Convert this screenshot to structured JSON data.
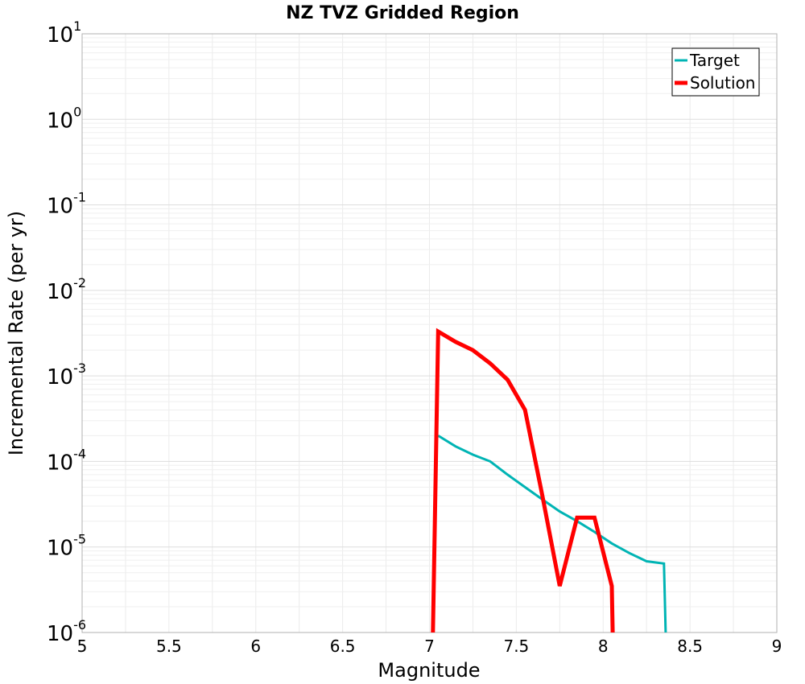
{
  "chart_data": {
    "type": "line",
    "title": "NZ TVZ Gridded Region",
    "xlabel": "Magnitude",
    "ylabel": "Incremental Rate (per yr)",
    "xlim": [
      5,
      9
    ],
    "ylim": [
      1e-06,
      10
    ],
    "yscale": "log",
    "grid": true,
    "legend_position": "top-right",
    "x_ticks": [
      5,
      5.5,
      6,
      6.5,
      7,
      7.5,
      8,
      8.5,
      9
    ],
    "x_tick_labels": [
      "5",
      "5.5",
      "6",
      "6.5",
      "7",
      "7.5",
      "8",
      "8.5",
      "9"
    ],
    "y_ticks": [
      {
        "value": 1e-06,
        "base": "10",
        "exp": "-6"
      },
      {
        "value": 1e-05,
        "base": "10",
        "exp": "-5"
      },
      {
        "value": 0.0001,
        "base": "10",
        "exp": "-4"
      },
      {
        "value": 0.001,
        "base": "10",
        "exp": "-3"
      },
      {
        "value": 0.01,
        "base": "10",
        "exp": "-2"
      },
      {
        "value": 0.1,
        "base": "10",
        "exp": "-1"
      },
      {
        "value": 1,
        "base": "10",
        "exp": "0"
      },
      {
        "value": 10,
        "base": "10",
        "exp": "1"
      }
    ],
    "series": [
      {
        "name": "Target",
        "color": "#00b4b4",
        "points": [
          [
            7.05,
            0.0002
          ],
          [
            7.15,
            0.00015
          ],
          [
            7.25,
            0.00012
          ],
          [
            7.35,
            0.0001
          ],
          [
            7.45,
            7e-05
          ],
          [
            7.55,
            5e-05
          ],
          [
            7.65,
            3.6e-05
          ],
          [
            7.75,
            2.6e-05
          ],
          [
            7.85,
            2e-05
          ],
          [
            7.95,
            1.5e-05
          ],
          [
            8.05,
            1.1e-05
          ],
          [
            8.15,
            8.5e-06
          ],
          [
            8.25,
            6.8e-06
          ],
          [
            8.35,
            6.4e-06
          ],
          [
            8.36,
            1e-06
          ]
        ]
      },
      {
        "name": "Solution",
        "color": "#ff0000",
        "points": [
          [
            7.02,
            1e-06
          ],
          [
            7.05,
            0.0033
          ],
          [
            7.15,
            0.0025
          ],
          [
            7.25,
            0.002
          ],
          [
            7.35,
            0.0014
          ],
          [
            7.45,
            0.0009
          ],
          [
            7.55,
            0.0004
          ],
          [
            7.65,
            4e-05
          ],
          [
            7.75,
            3.5e-06
          ],
          [
            7.85,
            2.2e-05
          ],
          [
            7.95,
            2.2e-05
          ],
          [
            8.05,
            3.5e-06
          ],
          [
            8.055,
            1e-06
          ]
        ]
      }
    ]
  }
}
